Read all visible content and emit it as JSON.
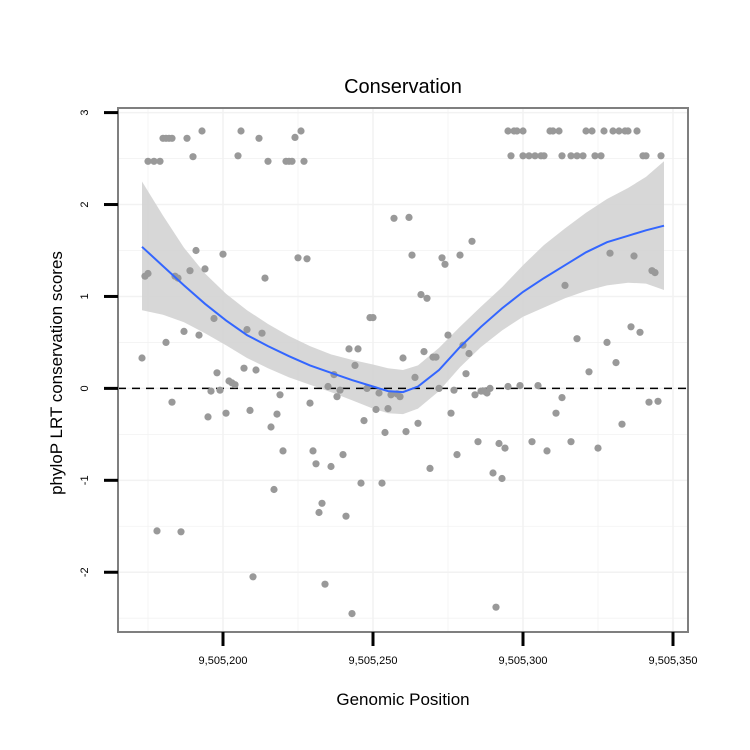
{
  "chart_data": {
    "type": "scatter",
    "title": "Conservation",
    "xlabel": "Genomic Position",
    "ylabel": "phyloP LRT conservation scores",
    "xlim": [
      9505165,
      9505355
    ],
    "ylim": [
      -2.65,
      3.05
    ],
    "x_ticks": [
      9505200,
      9505250,
      9505300,
      9505350
    ],
    "x_tick_labels": [
      "9,505,200",
      "9,505,250",
      "9,505,300",
      "9,505,350"
    ],
    "y_ticks": [
      -2,
      -1,
      0,
      1,
      2,
      3
    ],
    "y_tick_labels": [
      "-2",
      "-1",
      "0",
      "1",
      "2",
      "3"
    ],
    "reference_line": {
      "y": 0,
      "style": "dashed"
    },
    "colors": {
      "points": "#999999",
      "smooth": "#3366ff",
      "ribbon": "#d3d3d3",
      "frame": "#7f7f7f",
      "grid": "#f2f2f2"
    },
    "points": [
      [
        9505173,
        0.33
      ],
      [
        9505174,
        1.22
      ],
      [
        9505175,
        1.25
      ],
      [
        9505175,
        2.47
      ],
      [
        9505177,
        2.47
      ],
      [
        9505178,
        -1.55
      ],
      [
        9505179,
        2.47
      ],
      [
        9505180,
        2.72
      ],
      [
        9505181,
        0.5
      ],
      [
        9505181,
        2.72
      ],
      [
        9505182,
        2.72
      ],
      [
        9505183,
        2.72
      ],
      [
        9505183,
        -0.15
      ],
      [
        9505184,
        1.22
      ],
      [
        9505185,
        1.2
      ],
      [
        9505186,
        -1.56
      ],
      [
        9505187,
        0.62
      ],
      [
        9505188,
        2.72
      ],
      [
        9505189,
        1.28
      ],
      [
        9505190,
        2.52
      ],
      [
        9505191,
        1.5
      ],
      [
        9505192,
        0.58
      ],
      [
        9505193,
        2.8
      ],
      [
        9505194,
        1.3
      ],
      [
        9505195,
        -0.31
      ],
      [
        9505196,
        -0.03
      ],
      [
        9505197,
        0.76
      ],
      [
        9505198,
        0.17
      ],
      [
        9505199,
        -0.02
      ],
      [
        9505200,
        1.46
      ],
      [
        9505201,
        -0.27
      ],
      [
        9505202,
        0.08
      ],
      [
        9505203,
        0.06
      ],
      [
        9505204,
        0.04
      ],
      [
        9505205,
        2.53
      ],
      [
        9505206,
        2.8
      ],
      [
        9505207,
        0.22
      ],
      [
        9505208,
        0.64
      ],
      [
        9505209,
        -0.24
      ],
      [
        9505210,
        -2.05
      ],
      [
        9505211,
        0.2
      ],
      [
        9505212,
        2.72
      ],
      [
        9505213,
        0.6
      ],
      [
        9505214,
        1.2
      ],
      [
        9505215,
        2.47
      ],
      [
        9505216,
        -0.42
      ],
      [
        9505217,
        -1.1
      ],
      [
        9505218,
        -0.28
      ],
      [
        9505219,
        -0.07
      ],
      [
        9505220,
        -0.68
      ],
      [
        9505221,
        2.47
      ],
      [
        9505222,
        2.47
      ],
      [
        9505223,
        2.47
      ],
      [
        9505224,
        2.73
      ],
      [
        9505225,
        1.42
      ],
      [
        9505226,
        2.8
      ],
      [
        9505227,
        2.47
      ],
      [
        9505228,
        1.41
      ],
      [
        9505229,
        -0.16
      ],
      [
        9505230,
        -0.68
      ],
      [
        9505231,
        -0.82
      ],
      [
        9505232,
        -1.35
      ],
      [
        9505233,
        -1.25
      ],
      [
        9505234,
        -2.13
      ],
      [
        9505235,
        0.02
      ],
      [
        9505236,
        -0.85
      ],
      [
        9505237,
        0.15
      ],
      [
        9505238,
        -0.09
      ],
      [
        9505239,
        -0.02
      ],
      [
        9505240,
        -0.72
      ],
      [
        9505241,
        -1.39
      ],
      [
        9505242,
        0.43
      ],
      [
        9505243,
        -2.45
      ],
      [
        9505244,
        0.25
      ],
      [
        9505245,
        0.43
      ],
      [
        9505246,
        -1.03
      ],
      [
        9505247,
        -0.35
      ],
      [
        9505248,
        0.0
      ],
      [
        9505249,
        0.77
      ],
      [
        9505250,
        0.77
      ],
      [
        9505251,
        -0.23
      ],
      [
        9505252,
        -0.05
      ],
      [
        9505253,
        -1.03
      ],
      [
        9505254,
        -0.48
      ],
      [
        9505255,
        -0.22
      ],
      [
        9505256,
        -0.07
      ],
      [
        9505257,
        1.85
      ],
      [
        9505258,
        -0.06
      ],
      [
        9505259,
        -0.09
      ],
      [
        9505260,
        0.33
      ],
      [
        9505261,
        -0.47
      ],
      [
        9505262,
        1.86
      ],
      [
        9505263,
        1.45
      ],
      [
        9505264,
        0.12
      ],
      [
        9505265,
        -0.38
      ],
      [
        9505266,
        1.02
      ],
      [
        9505267,
        0.4
      ],
      [
        9505268,
        0.98
      ],
      [
        9505269,
        -0.87
      ],
      [
        9505270,
        0.34
      ],
      [
        9505271,
        0.34
      ],
      [
        9505272,
        0.0
      ],
      [
        9505273,
        1.42
      ],
      [
        9505274,
        1.35
      ],
      [
        9505275,
        0.58
      ],
      [
        9505276,
        -0.27
      ],
      [
        9505277,
        -0.02
      ],
      [
        9505278,
        -0.72
      ],
      [
        9505279,
        1.45
      ],
      [
        9505280,
        0.47
      ],
      [
        9505281,
        0.16
      ],
      [
        9505282,
        0.38
      ],
      [
        9505283,
        1.6
      ],
      [
        9505284,
        -0.07
      ],
      [
        9505285,
        -0.58
      ],
      [
        9505286,
        -0.03
      ],
      [
        9505287,
        -0.03
      ],
      [
        9505288,
        -0.05
      ],
      [
        9505289,
        0.0
      ],
      [
        9505290,
        -0.92
      ],
      [
        9505291,
        -2.38
      ],
      [
        9505292,
        -0.6
      ],
      [
        9505293,
        -0.98
      ],
      [
        9505294,
        -0.65
      ],
      [
        9505295,
        2.8
      ],
      [
        9505295,
        0.02
      ],
      [
        9505296,
        2.53
      ],
      [
        9505297,
        2.8
      ],
      [
        9505298,
        2.8
      ],
      [
        9505299,
        0.03
      ],
      [
        9505300,
        2.8
      ],
      [
        9505300,
        2.53
      ],
      [
        9505302,
        2.53
      ],
      [
        9505303,
        -0.58
      ],
      [
        9505304,
        2.53
      ],
      [
        9505305,
        0.03
      ],
      [
        9505306,
        2.53
      ],
      [
        9505307,
        2.53
      ],
      [
        9505308,
        -0.68
      ],
      [
        9505309,
        2.8
      ],
      [
        9505310,
        2.8
      ],
      [
        9505311,
        -0.27
      ],
      [
        9505312,
        2.8
      ],
      [
        9505313,
        -0.1
      ],
      [
        9505313,
        2.53
      ],
      [
        9505314,
        1.12
      ],
      [
        9505316,
        2.53
      ],
      [
        9505316,
        -0.58
      ],
      [
        9505318,
        2.53
      ],
      [
        9505318,
        0.54
      ],
      [
        9505320,
        2.53
      ],
      [
        9505321,
        2.8
      ],
      [
        9505322,
        0.18
      ],
      [
        9505323,
        2.8
      ],
      [
        9505324,
        2.53
      ],
      [
        9505325,
        -0.65
      ],
      [
        9505326,
        2.53
      ],
      [
        9505327,
        2.8
      ],
      [
        9505328,
        0.5
      ],
      [
        9505329,
        1.47
      ],
      [
        9505330,
        2.8
      ],
      [
        9505331,
        0.28
      ],
      [
        9505332,
        2.8
      ],
      [
        9505333,
        -0.39
      ],
      [
        9505334,
        2.8
      ],
      [
        9505335,
        2.8
      ],
      [
        9505336,
        0.67
      ],
      [
        9505337,
        1.44
      ],
      [
        9505338,
        2.8
      ],
      [
        9505339,
        0.61
      ],
      [
        9505340,
        2.53
      ],
      [
        9505341,
        2.53
      ],
      [
        9505342,
        -0.15
      ],
      [
        9505343,
        1.28
      ],
      [
        9505344,
        1.26
      ],
      [
        9505345,
        -0.14
      ],
      [
        9505346,
        2.53
      ]
    ],
    "smooth": [
      [
        9505173,
        1.54
      ],
      [
        9505180,
        1.33
      ],
      [
        9505187,
        1.12
      ],
      [
        9505194,
        0.92
      ],
      [
        9505201,
        0.74
      ],
      [
        9505208,
        0.58
      ],
      [
        9505215,
        0.46
      ],
      [
        9505222,
        0.35
      ],
      [
        9505229,
        0.25
      ],
      [
        9505236,
        0.17
      ],
      [
        9505243,
        0.09
      ],
      [
        9505250,
        0.02
      ],
      [
        9505255,
        -0.03
      ],
      [
        9505260,
        -0.04
      ],
      [
        9505265,
        0.02
      ],
      [
        9505272,
        0.2
      ],
      [
        9505279,
        0.45
      ],
      [
        9505286,
        0.67
      ],
      [
        9505293,
        0.87
      ],
      [
        9505300,
        1.05
      ],
      [
        9505307,
        1.2
      ],
      [
        9505314,
        1.34
      ],
      [
        9505321,
        1.48
      ],
      [
        9505328,
        1.59
      ],
      [
        9505335,
        1.66
      ],
      [
        9505341,
        1.72
      ],
      [
        9505347,
        1.77
      ]
    ],
    "ribbon_upper": [
      [
        9505173,
        2.25
      ],
      [
        9505180,
        1.88
      ],
      [
        9505187,
        1.53
      ],
      [
        9505194,
        1.25
      ],
      [
        9505201,
        1.03
      ],
      [
        9505208,
        0.85
      ],
      [
        9505215,
        0.7
      ],
      [
        9505222,
        0.57
      ],
      [
        9505229,
        0.46
      ],
      [
        9505236,
        0.37
      ],
      [
        9505243,
        0.31
      ],
      [
        9505250,
        0.26
      ],
      [
        9505255,
        0.22
      ],
      [
        9505260,
        0.2
      ],
      [
        9505265,
        0.25
      ],
      [
        9505272,
        0.44
      ],
      [
        9505279,
        0.67
      ],
      [
        9505286,
        0.89
      ],
      [
        9505293,
        1.1
      ],
      [
        9505300,
        1.34
      ],
      [
        9505307,
        1.56
      ],
      [
        9505314,
        1.74
      ],
      [
        9505321,
        1.91
      ],
      [
        9505328,
        2.06
      ],
      [
        9505335,
        2.18
      ],
      [
        9505341,
        2.3
      ],
      [
        9505347,
        2.47
      ]
    ],
    "ribbon_lower": [
      [
        9505173,
        0.85
      ],
      [
        9505180,
        0.8
      ],
      [
        9505187,
        0.72
      ],
      [
        9505194,
        0.6
      ],
      [
        9505201,
        0.47
      ],
      [
        9505208,
        0.33
      ],
      [
        9505215,
        0.22
      ],
      [
        9505222,
        0.12
      ],
      [
        9505229,
        0.04
      ],
      [
        9505236,
        -0.04
      ],
      [
        9505243,
        -0.13
      ],
      [
        9505250,
        -0.22
      ],
      [
        9505255,
        -0.27
      ],
      [
        9505260,
        -0.28
      ],
      [
        9505265,
        -0.22
      ],
      [
        9505272,
        -0.03
      ],
      [
        9505279,
        0.23
      ],
      [
        9505286,
        0.45
      ],
      [
        9505293,
        0.63
      ],
      [
        9505300,
        0.78
      ],
      [
        9505307,
        0.88
      ],
      [
        9505314,
        0.98
      ],
      [
        9505321,
        1.06
      ],
      [
        9505328,
        1.12
      ],
      [
        9505335,
        1.15
      ],
      [
        9505341,
        1.14
      ],
      [
        9505347,
        1.07
      ]
    ]
  }
}
